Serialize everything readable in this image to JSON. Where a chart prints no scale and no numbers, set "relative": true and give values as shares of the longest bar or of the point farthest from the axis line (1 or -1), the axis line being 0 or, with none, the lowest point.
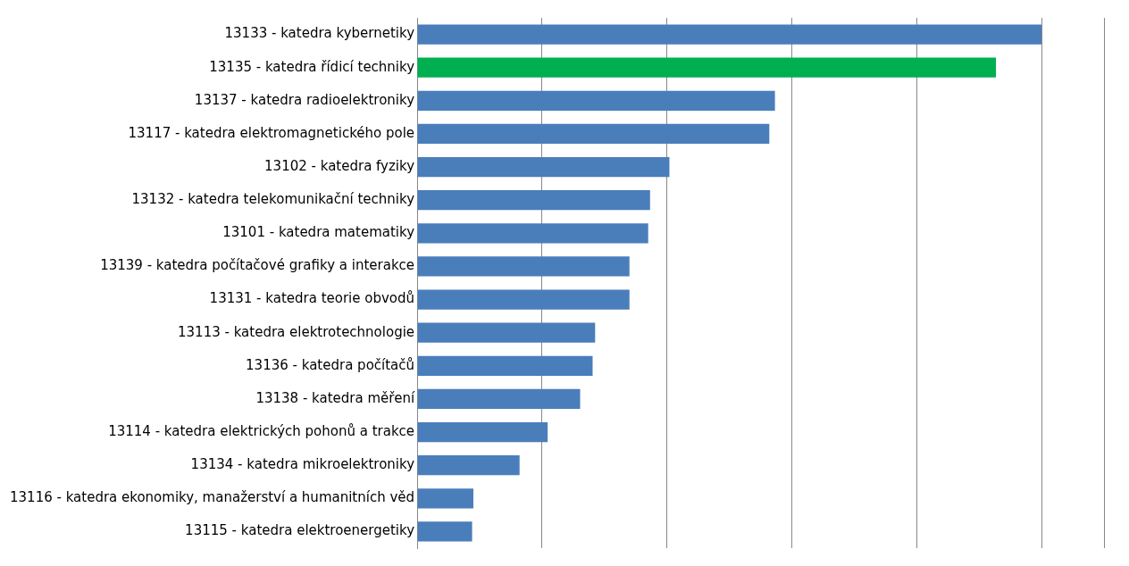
{
  "chart_data": {
    "type": "bar",
    "orientation": "horizontal",
    "relative": true,
    "grid": "x",
    "categories": [
      "13133 - katedra kybernetiky",
      "13135 - katedra řídicí techniky",
      "13137 - katedra radioelektroniky",
      "13117 - katedra elektromagnetického pole",
      "13102 - katedra fyziky",
      "13132 - katedra telekomunikační techniky",
      "13101 - katedra matematiky",
      "13139 - katedra počítačové grafiky a interakce",
      "13131 - katedra teorie obvodů",
      "13113 - katedra elektrotechnologie",
      "13136 - katedra počítačů",
      "13138 - katedra měření",
      "13114 - katedra elektrických pohonů a trakce",
      "13134 - katedra mikroelektroniky",
      "13116 - katedra ekonomiky, manažerství a humanitních věd",
      "13115 - katedra elektroenergetiky"
    ],
    "values": [
      1,
      0.927,
      0.573,
      0.564,
      0.404,
      0.373,
      0.37,
      0.34,
      0.34,
      0.285,
      0.281,
      0.261,
      0.209,
      0.164,
      0.09,
      0.088
    ],
    "colors": [
      "#4a7ebb",
      "#00b050",
      "#4a7ebb",
      "#4a7ebb",
      "#4a7ebb",
      "#4a7ebb",
      "#4a7ebb",
      "#4a7ebb",
      "#4a7ebb",
      "#4a7ebb",
      "#4a7ebb",
      "#4a7ebb",
      "#4a7ebb",
      "#4a7ebb",
      "#4a7ebb",
      "#4a7ebb"
    ]
  }
}
